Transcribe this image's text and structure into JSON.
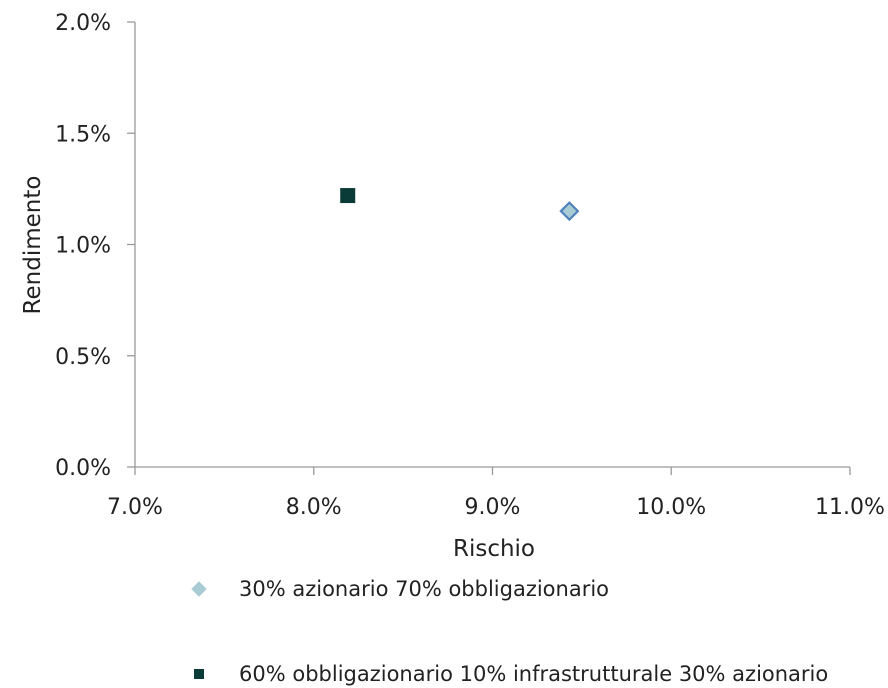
{
  "chart_data": {
    "type": "scatter",
    "title": "",
    "xlabel": "Rischio",
    "ylabel": "Rendimento",
    "xlim": [
      0.07,
      0.11
    ],
    "ylim": [
      0.0,
      0.02
    ],
    "x_ticks": [
      0.07,
      0.08,
      0.09,
      0.1,
      0.11
    ],
    "x_tick_labels": [
      "7.0%",
      "8.0%",
      "9.0%",
      "10.0%",
      "11.0%"
    ],
    "y_ticks": [
      0.0,
      0.005,
      0.01,
      0.015,
      0.02
    ],
    "y_tick_labels": [
      "0.0%",
      "0.5%",
      "1.0%",
      "1.5%",
      "2.0%"
    ],
    "grid": false,
    "legend_position": "bottom",
    "series": [
      {
        "name": "30% azionario 70% obbligazionario",
        "marker": "diamond",
        "fill": "#a9cbd4",
        "stroke": "#4f81bd",
        "points": [
          {
            "x": 0.0943,
            "y": 0.0115
          }
        ]
      },
      {
        "name": "60% obbligazionario 10% infrastrutturale 30% azionario",
        "marker": "square",
        "fill": "#0b3b38",
        "stroke": "#0b3b38",
        "points": [
          {
            "x": 0.0819,
            "y": 0.0122
          }
        ]
      }
    ]
  }
}
